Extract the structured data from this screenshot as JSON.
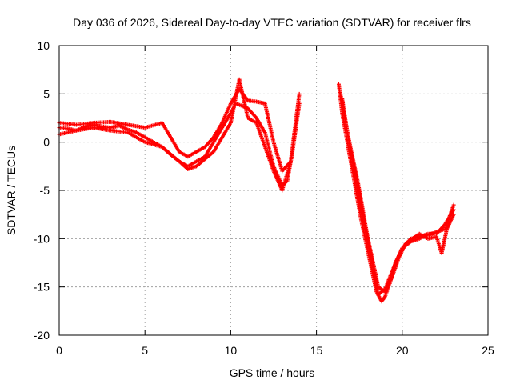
{
  "chart_data": {
    "type": "scatter",
    "title": "Day 036 of 2026, Sidereal Day-to-day VTEC variation (SDTVAR) for receiver flrs",
    "xlabel": "GPS time / hours",
    "ylabel": "SDTVAR / TECUs",
    "xlim": [
      0,
      25
    ],
    "ylim": [
      -20,
      10
    ],
    "x_ticks": [
      "0",
      "5",
      "10",
      "15",
      "20",
      "25"
    ],
    "y_ticks": [
      "-20",
      "-15",
      "-10",
      "-5",
      "0",
      "5",
      "10"
    ],
    "grid": true,
    "legend": "none",
    "marker": "plus",
    "color": "#ff0000",
    "series": [
      {
        "x": [
          0.0,
          0.5,
          1.0,
          1.5,
          2.0,
          2.5,
          3.0,
          3.5,
          4.0,
          4.5,
          5.0,
          5.5,
          6.0,
          6.5,
          7.0,
          7.5,
          8.0,
          8.5,
          9.0,
          9.5,
          10.0,
          10.3,
          10.6,
          11.0,
          11.5,
          12.0,
          12.5,
          13.0,
          13.3,
          13.6,
          14.0
        ],
        "y": [
          1.5,
          1.4,
          1.2,
          1.6,
          1.8,
          1.6,
          1.5,
          1.7,
          1.3,
          1.0,
          0.5,
          0.0,
          -0.5,
          -1.3,
          -2.0,
          -2.5,
          -2.0,
          -1.5,
          0.0,
          1.5,
          3.0,
          4.0,
          3.8,
          3.5,
          2.5,
          1.0,
          -2.5,
          -4.5,
          -4.0,
          -1.0,
          4.0
        ]
      },
      {
        "x": [
          0.0,
          1.0,
          2.0,
          3.0,
          4.0,
          5.0,
          6.0,
          7.0,
          7.5,
          8.0,
          8.5,
          9.0,
          9.5,
          10.0,
          10.5,
          11.0,
          11.5,
          12.0,
          12.5,
          13.0,
          13.5,
          14.0
        ],
        "y": [
          2.0,
          1.8,
          2.0,
          2.1,
          1.8,
          1.5,
          2.0,
          -1.0,
          -1.5,
          -1.0,
          -0.5,
          0.5,
          2.0,
          4.0,
          5.5,
          4.3,
          4.2,
          4.0,
          0.0,
          -3.0,
          -2.0,
          5.0
        ]
      },
      {
        "x": [
          0.0,
          1.0,
          2.0,
          3.0,
          4.0,
          5.0,
          6.0,
          7.0,
          7.5,
          8.0,
          9.0,
          10.0,
          10.5,
          11.0,
          11.5,
          12.0,
          12.5,
          13.0,
          13.5
        ],
        "y": [
          0.8,
          1.2,
          1.5,
          1.2,
          1.0,
          0.0,
          -0.5,
          -2.0,
          -2.8,
          -2.5,
          -1.0,
          2.0,
          6.5,
          2.5,
          2.0,
          -0.5,
          -3.0,
          -5.0,
          -2.0
        ]
      },
      {
        "x": [
          16.3,
          16.5,
          16.8,
          17.0,
          17.3,
          17.6,
          17.9,
          18.2,
          18.5,
          18.8,
          19.0,
          19.3,
          19.6,
          20.0,
          20.5,
          21.0,
          21.5,
          22.0,
          22.5,
          23.0
        ],
        "y": [
          6.0,
          3.0,
          0.0,
          -2.0,
          -5.0,
          -8.0,
          -10.5,
          -13.0,
          -15.5,
          -16.5,
          -16.0,
          -14.5,
          -12.5,
          -11.0,
          -10.0,
          -9.8,
          -9.5,
          -9.5,
          -8.5,
          -7.0
        ]
      },
      {
        "x": [
          16.5,
          16.8,
          17.1,
          17.4,
          17.7,
          18.0,
          18.3,
          18.6,
          19.0,
          19.4,
          19.8,
          20.2,
          20.6,
          21.0,
          21.5,
          22.0,
          22.3,
          22.6,
          23.0
        ],
        "y": [
          4.5,
          1.0,
          -1.5,
          -4.0,
          -7.0,
          -10.0,
          -12.5,
          -15.0,
          -15.5,
          -14.0,
          -12.0,
          -10.5,
          -10.0,
          -9.5,
          -10.0,
          -9.8,
          -11.5,
          -9.0,
          -7.5
        ]
      },
      {
        "x": [
          16.4,
          16.7,
          17.0,
          17.3,
          17.6,
          17.9,
          18.2,
          18.6,
          19.0,
          19.5,
          20.0,
          20.5,
          21.0,
          21.5,
          22.0,
          22.5,
          23.0
        ],
        "y": [
          5.0,
          2.0,
          -1.0,
          -3.5,
          -6.5,
          -9.5,
          -12.0,
          -15.8,
          -15.2,
          -13.0,
          -11.0,
          -10.3,
          -10.0,
          -9.6,
          -9.3,
          -9.0,
          -6.5
        ]
      }
    ]
  }
}
